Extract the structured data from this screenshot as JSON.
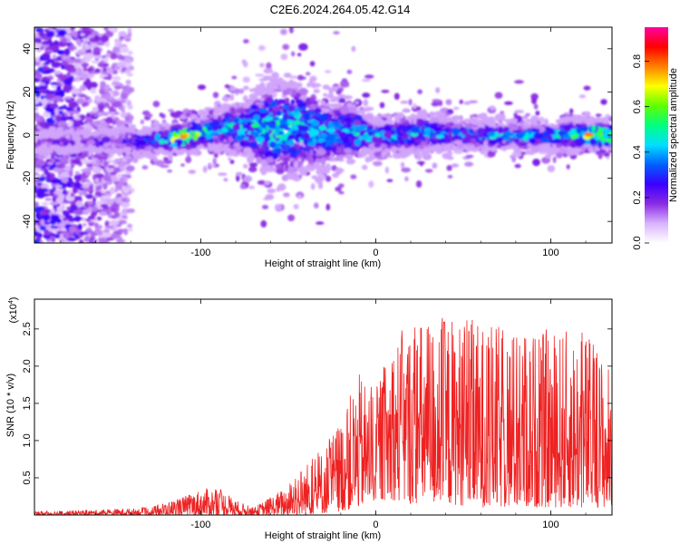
{
  "title": "C2E6.2024.264.05.42.G14",
  "chart_data": [
    {
      "type": "heatmap",
      "xlabel": "Height of straight line (km)",
      "ylabel": "Frequency (Hz)",
      "xlim": [
        -195,
        135
      ],
      "ylim": [
        -50,
        50
      ],
      "x_ticks": [
        -100,
        0,
        100
      ],
      "x_tick_labels": [
        "-100",
        "0",
        "100"
      ],
      "y_ticks": [
        -40,
        -20,
        0,
        20,
        40
      ],
      "y_tick_labels": [
        "-40",
        "-20",
        "0",
        "20",
        "40"
      ],
      "colorbar": {
        "label": "Normalized spectral amplitude",
        "range": [
          0,
          0.95
        ],
        "ticks": [
          0.0,
          0.2,
          0.4,
          0.6,
          0.8
        ],
        "tick_labels": [
          "0.0",
          "0.2",
          "0.4",
          "0.6",
          "0.8"
        ],
        "colors": [
          "#ffffff",
          "#d9b3ff",
          "#8a2be2",
          "#3a00ff",
          "#0060ff",
          "#00e0ff",
          "#00ff80",
          "#60ff00",
          "#ffff00",
          "#ff8000",
          "#ff0000",
          "#ff00a0"
        ]
      },
      "ridge": {
        "x": [
          -195,
          -170,
          -150,
          -130,
          -110,
          -90,
          -70,
          -55,
          -40,
          -25,
          -10,
          0,
          15,
          30,
          50,
          70,
          90,
          110,
          125,
          135
        ],
        "center_hz": [
          -3,
          -3,
          -3,
          -3,
          -1,
          3,
          4,
          2,
          3,
          1,
          1,
          -1,
          0,
          1,
          0,
          0,
          -1,
          0,
          0,
          0
        ],
        "half_width_hz": [
          2,
          2,
          2,
          3,
          3,
          4,
          8,
          12,
          10,
          8,
          6,
          3,
          4,
          4,
          3,
          3,
          3,
          3,
          3,
          3
        ],
        "peak_amplitude": [
          0.2,
          0.2,
          0.25,
          0.35,
          0.8,
          0.45,
          0.5,
          0.55,
          0.5,
          0.4,
          0.5,
          0.45,
          0.45,
          0.45,
          0.4,
          0.45,
          0.45,
          0.55,
          0.85,
          0.7
        ]
      },
      "broadband_region": {
        "x_from": -195,
        "x_to": -140,
        "level": 0.25
      }
    },
    {
      "type": "line",
      "xlabel": "Height of straight line (km)",
      "ylabel": "SNR (10 * v/v)",
      "y_scale_label": "(x10^4)",
      "xlim": [
        -195,
        135
      ],
      "ylim": [
        0,
        2.9
      ],
      "x_ticks": [
        -100,
        0,
        100
      ],
      "x_tick_labels": [
        "-100",
        "0",
        "100"
      ],
      "y_ticks": [
        0.5,
        1.0,
        1.5,
        2.0,
        2.5
      ],
      "y_tick_labels": [
        "0.5",
        "1.0",
        "1.5",
        "2.0",
        "2.5"
      ],
      "series": [
        {
          "color": "#ee2222",
          "envelope_x": [
            -195,
            -160,
            -130,
            -110,
            -100,
            -90,
            -80,
            -70,
            -50,
            -45,
            -30,
            -20,
            -10,
            0,
            10,
            20,
            40,
            60,
            80,
            100,
            120,
            135
          ],
          "envelope_min": [
            0,
            0,
            0,
            0,
            0,
            0,
            0,
            0,
            0,
            0,
            0.02,
            0.05,
            0.1,
            0.2,
            0.2,
            0.15,
            0.15,
            0.1,
            0.1,
            0.1,
            0.1,
            0.1
          ],
          "envelope_max": [
            0.05,
            0.07,
            0.1,
            0.25,
            0.35,
            0.38,
            0.2,
            0.1,
            0.4,
            0.6,
            0.9,
            1.3,
            1.9,
            1.7,
            2.4,
            2.6,
            2.7,
            2.6,
            2.5,
            2.5,
            2.5,
            2.0
          ]
        }
      ]
    }
  ]
}
